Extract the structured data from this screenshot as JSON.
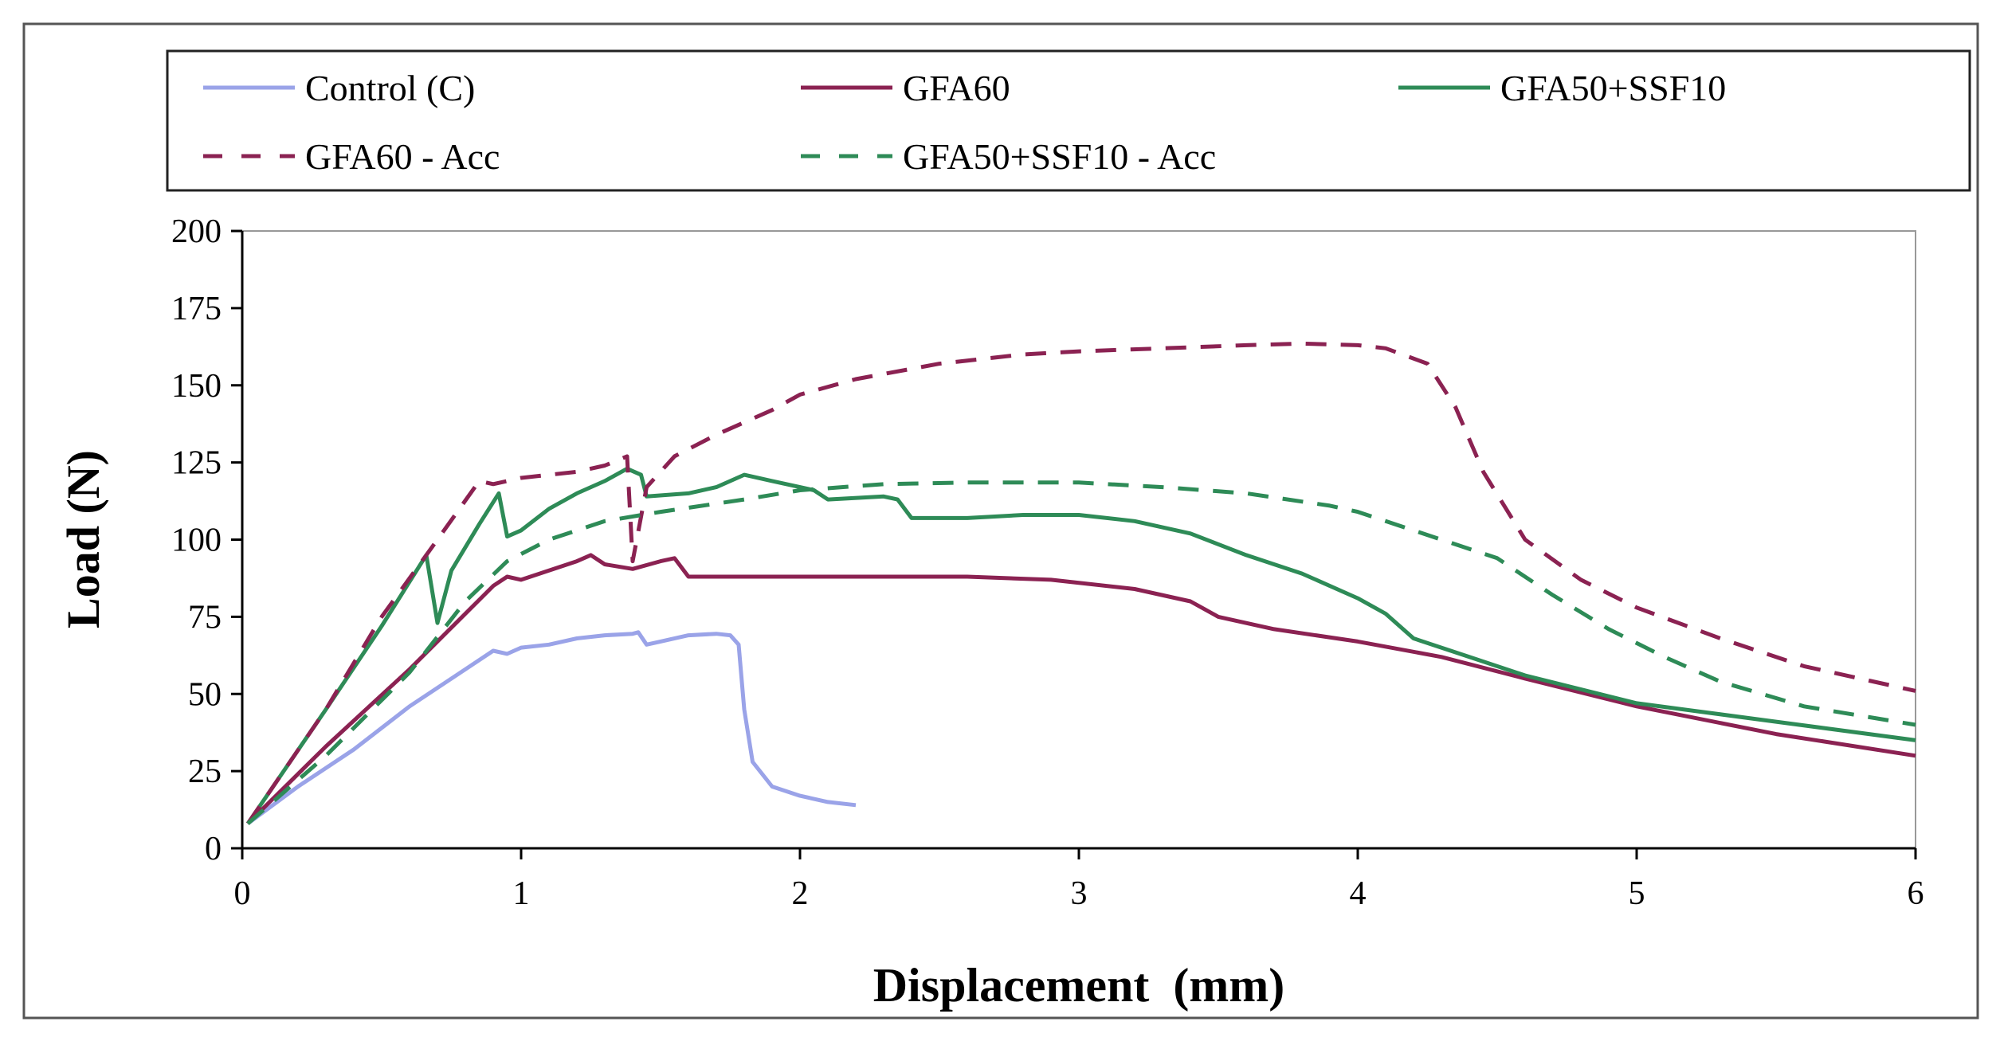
{
  "chart_data": {
    "type": "line",
    "title": "",
    "xlabel": "Displacement  (mm)",
    "ylabel": "Load (N)",
    "xlim": [
      0,
      6
    ],
    "ylim": [
      0,
      200
    ],
    "x_ticks": [
      0,
      1,
      2,
      3,
      4,
      5,
      6
    ],
    "y_ticks": [
      0,
      25,
      50,
      75,
      100,
      125,
      150,
      175,
      200
    ],
    "grid": false,
    "legend_position": "top",
    "series": [
      {
        "name": "Control (C)",
        "color": "#9aa3e8",
        "dash": "solid",
        "points": [
          [
            0.02,
            8
          ],
          [
            0.2,
            20
          ],
          [
            0.4,
            32
          ],
          [
            0.6,
            46
          ],
          [
            0.8,
            58
          ],
          [
            0.9,
            64
          ],
          [
            0.95,
            63
          ],
          [
            1.0,
            65
          ],
          [
            1.1,
            66
          ],
          [
            1.2,
            68
          ],
          [
            1.3,
            69
          ],
          [
            1.4,
            69.5
          ],
          [
            1.42,
            70
          ],
          [
            1.45,
            66
          ],
          [
            1.5,
            67
          ],
          [
            1.6,
            69
          ],
          [
            1.7,
            69.5
          ],
          [
            1.75,
            69
          ],
          [
            1.78,
            66
          ],
          [
            1.8,
            45
          ],
          [
            1.83,
            28
          ],
          [
            1.9,
            20
          ],
          [
            2.0,
            17
          ],
          [
            2.1,
            15
          ],
          [
            2.2,
            14
          ]
        ]
      },
      {
        "name": "GFA60",
        "color": "#8b2252",
        "dash": "solid",
        "points": [
          [
            0.02,
            8
          ],
          [
            0.3,
            33
          ],
          [
            0.6,
            58
          ],
          [
            0.9,
            85
          ],
          [
            0.95,
            88
          ],
          [
            1.0,
            87
          ],
          [
            1.1,
            90
          ],
          [
            1.2,
            93
          ],
          [
            1.25,
            95
          ],
          [
            1.3,
            92
          ],
          [
            1.4,
            90.5
          ],
          [
            1.5,
            93
          ],
          [
            1.55,
            94
          ],
          [
            1.6,
            88
          ],
          [
            1.8,
            88
          ],
          [
            2.0,
            88
          ],
          [
            2.3,
            88
          ],
          [
            2.6,
            88
          ],
          [
            2.9,
            87
          ],
          [
            3.2,
            84
          ],
          [
            3.4,
            80
          ],
          [
            3.5,
            75
          ],
          [
            3.7,
            71
          ],
          [
            4.0,
            67
          ],
          [
            4.3,
            62
          ],
          [
            4.6,
            55
          ],
          [
            5.0,
            46
          ],
          [
            5.5,
            37
          ],
          [
            6.0,
            30
          ]
        ]
      },
      {
        "name": "GFA50+SSF10",
        "color": "#2e8b57",
        "dash": "solid",
        "points": [
          [
            0.02,
            8
          ],
          [
            0.3,
            45
          ],
          [
            0.5,
            72
          ],
          [
            0.66,
            95
          ],
          [
            0.7,
            73
          ],
          [
            0.75,
            90
          ],
          [
            0.85,
            105
          ],
          [
            0.92,
            115
          ],
          [
            0.95,
            101
          ],
          [
            1.0,
            103
          ],
          [
            1.1,
            110
          ],
          [
            1.2,
            115
          ],
          [
            1.3,
            119
          ],
          [
            1.38,
            123
          ],
          [
            1.43,
            121
          ],
          [
            1.45,
            114
          ],
          [
            1.6,
            115
          ],
          [
            1.7,
            117
          ],
          [
            1.8,
            121
          ],
          [
            1.9,
            119
          ],
          [
            2.0,
            117
          ],
          [
            2.05,
            116
          ],
          [
            2.1,
            113
          ],
          [
            2.3,
            114
          ],
          [
            2.35,
            113
          ],
          [
            2.4,
            107
          ],
          [
            2.6,
            107
          ],
          [
            2.8,
            108
          ],
          [
            3.0,
            108
          ],
          [
            3.2,
            106
          ],
          [
            3.4,
            102
          ],
          [
            3.6,
            95
          ],
          [
            3.8,
            89
          ],
          [
            4.0,
            81
          ],
          [
            4.1,
            76
          ],
          [
            4.2,
            68
          ],
          [
            4.4,
            62
          ],
          [
            4.6,
            56
          ],
          [
            5.0,
            47
          ],
          [
            5.5,
            41
          ],
          [
            6.0,
            35
          ]
        ]
      },
      {
        "name": "GFA60 - Acc",
        "color": "#8b2252",
        "dash": "dashed",
        "points": [
          [
            0.02,
            8
          ],
          [
            0.3,
            45
          ],
          [
            0.5,
            75
          ],
          [
            0.7,
            100
          ],
          [
            0.85,
            119
          ],
          [
            0.9,
            118
          ],
          [
            1.0,
            120
          ],
          [
            1.2,
            122
          ],
          [
            1.3,
            124
          ],
          [
            1.38,
            127
          ],
          [
            1.4,
            93
          ],
          [
            1.45,
            117
          ],
          [
            1.55,
            127
          ],
          [
            1.7,
            134
          ],
          [
            1.9,
            142
          ],
          [
            2.0,
            147
          ],
          [
            2.2,
            152
          ],
          [
            2.5,
            157
          ],
          [
            2.8,
            160
          ],
          [
            3.0,
            161
          ],
          [
            3.3,
            162
          ],
          [
            3.6,
            163
          ],
          [
            3.8,
            163.5
          ],
          [
            4.0,
            163
          ],
          [
            4.1,
            162
          ],
          [
            4.25,
            157
          ],
          [
            4.35,
            143
          ],
          [
            4.45,
            122
          ],
          [
            4.6,
            100
          ],
          [
            4.8,
            87
          ],
          [
            5.0,
            78
          ],
          [
            5.3,
            68
          ],
          [
            5.6,
            59
          ],
          [
            6.0,
            51
          ]
        ]
      },
      {
        "name": "GFA50+SSF10 - Acc",
        "color": "#2e8b57",
        "dash": "dashed",
        "points": [
          [
            0.02,
            8
          ],
          [
            0.3,
            30
          ],
          [
            0.6,
            57
          ],
          [
            0.8,
            80
          ],
          [
            0.95,
            93
          ],
          [
            1.1,
            100
          ],
          [
            1.3,
            106
          ],
          [
            1.5,
            109
          ],
          [
            1.8,
            113
          ],
          [
            2.0,
            116
          ],
          [
            2.3,
            118
          ],
          [
            2.6,
            118.5
          ],
          [
            3.0,
            118.5
          ],
          [
            3.3,
            117
          ],
          [
            3.6,
            115
          ],
          [
            3.9,
            111
          ],
          [
            4.0,
            109
          ],
          [
            4.3,
            100
          ],
          [
            4.5,
            94
          ],
          [
            4.7,
            82
          ],
          [
            4.9,
            71
          ],
          [
            5.1,
            62
          ],
          [
            5.3,
            54
          ],
          [
            5.6,
            46
          ],
          [
            6.0,
            40
          ]
        ]
      }
    ]
  }
}
